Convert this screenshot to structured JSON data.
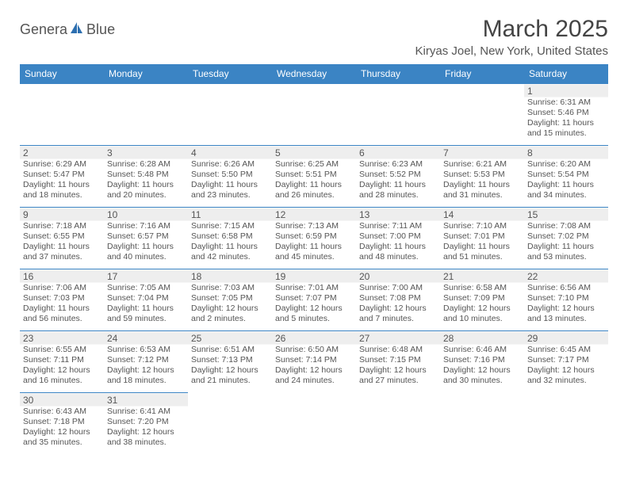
{
  "logo": {
    "text_left": "Genera",
    "text_right": "Blue",
    "icon_color": "#2d6fb0"
  },
  "title": "March 2025",
  "location": "Kiryas Joel, New York, United States",
  "header_bg": "#3b84c4",
  "day_headers": [
    "Sunday",
    "Monday",
    "Tuesday",
    "Wednesday",
    "Thursday",
    "Friday",
    "Saturday"
  ],
  "weeks": [
    [
      null,
      null,
      null,
      null,
      null,
      null,
      {
        "n": "1",
        "sr": "Sunrise: 6:31 AM",
        "ss": "Sunset: 5:46 PM",
        "dl": "Daylight: 11 hours and 15 minutes."
      }
    ],
    [
      {
        "n": "2",
        "sr": "Sunrise: 6:29 AM",
        "ss": "Sunset: 5:47 PM",
        "dl": "Daylight: 11 hours and 18 minutes."
      },
      {
        "n": "3",
        "sr": "Sunrise: 6:28 AM",
        "ss": "Sunset: 5:48 PM",
        "dl": "Daylight: 11 hours and 20 minutes."
      },
      {
        "n": "4",
        "sr": "Sunrise: 6:26 AM",
        "ss": "Sunset: 5:50 PM",
        "dl": "Daylight: 11 hours and 23 minutes."
      },
      {
        "n": "5",
        "sr": "Sunrise: 6:25 AM",
        "ss": "Sunset: 5:51 PM",
        "dl": "Daylight: 11 hours and 26 minutes."
      },
      {
        "n": "6",
        "sr": "Sunrise: 6:23 AM",
        "ss": "Sunset: 5:52 PM",
        "dl": "Daylight: 11 hours and 28 minutes."
      },
      {
        "n": "7",
        "sr": "Sunrise: 6:21 AM",
        "ss": "Sunset: 5:53 PM",
        "dl": "Daylight: 11 hours and 31 minutes."
      },
      {
        "n": "8",
        "sr": "Sunrise: 6:20 AM",
        "ss": "Sunset: 5:54 PM",
        "dl": "Daylight: 11 hours and 34 minutes."
      }
    ],
    [
      {
        "n": "9",
        "sr": "Sunrise: 7:18 AM",
        "ss": "Sunset: 6:55 PM",
        "dl": "Daylight: 11 hours and 37 minutes."
      },
      {
        "n": "10",
        "sr": "Sunrise: 7:16 AM",
        "ss": "Sunset: 6:57 PM",
        "dl": "Daylight: 11 hours and 40 minutes."
      },
      {
        "n": "11",
        "sr": "Sunrise: 7:15 AM",
        "ss": "Sunset: 6:58 PM",
        "dl": "Daylight: 11 hours and 42 minutes."
      },
      {
        "n": "12",
        "sr": "Sunrise: 7:13 AM",
        "ss": "Sunset: 6:59 PM",
        "dl": "Daylight: 11 hours and 45 minutes."
      },
      {
        "n": "13",
        "sr": "Sunrise: 7:11 AM",
        "ss": "Sunset: 7:00 PM",
        "dl": "Daylight: 11 hours and 48 minutes."
      },
      {
        "n": "14",
        "sr": "Sunrise: 7:10 AM",
        "ss": "Sunset: 7:01 PM",
        "dl": "Daylight: 11 hours and 51 minutes."
      },
      {
        "n": "15",
        "sr": "Sunrise: 7:08 AM",
        "ss": "Sunset: 7:02 PM",
        "dl": "Daylight: 11 hours and 53 minutes."
      }
    ],
    [
      {
        "n": "16",
        "sr": "Sunrise: 7:06 AM",
        "ss": "Sunset: 7:03 PM",
        "dl": "Daylight: 11 hours and 56 minutes."
      },
      {
        "n": "17",
        "sr": "Sunrise: 7:05 AM",
        "ss": "Sunset: 7:04 PM",
        "dl": "Daylight: 11 hours and 59 minutes."
      },
      {
        "n": "18",
        "sr": "Sunrise: 7:03 AM",
        "ss": "Sunset: 7:05 PM",
        "dl": "Daylight: 12 hours and 2 minutes."
      },
      {
        "n": "19",
        "sr": "Sunrise: 7:01 AM",
        "ss": "Sunset: 7:07 PM",
        "dl": "Daylight: 12 hours and 5 minutes."
      },
      {
        "n": "20",
        "sr": "Sunrise: 7:00 AM",
        "ss": "Sunset: 7:08 PM",
        "dl": "Daylight: 12 hours and 7 minutes."
      },
      {
        "n": "21",
        "sr": "Sunrise: 6:58 AM",
        "ss": "Sunset: 7:09 PM",
        "dl": "Daylight: 12 hours and 10 minutes."
      },
      {
        "n": "22",
        "sr": "Sunrise: 6:56 AM",
        "ss": "Sunset: 7:10 PM",
        "dl": "Daylight: 12 hours and 13 minutes."
      }
    ],
    [
      {
        "n": "23",
        "sr": "Sunrise: 6:55 AM",
        "ss": "Sunset: 7:11 PM",
        "dl": "Daylight: 12 hours and 16 minutes."
      },
      {
        "n": "24",
        "sr": "Sunrise: 6:53 AM",
        "ss": "Sunset: 7:12 PM",
        "dl": "Daylight: 12 hours and 18 minutes."
      },
      {
        "n": "25",
        "sr": "Sunrise: 6:51 AM",
        "ss": "Sunset: 7:13 PM",
        "dl": "Daylight: 12 hours and 21 minutes."
      },
      {
        "n": "26",
        "sr": "Sunrise: 6:50 AM",
        "ss": "Sunset: 7:14 PM",
        "dl": "Daylight: 12 hours and 24 minutes."
      },
      {
        "n": "27",
        "sr": "Sunrise: 6:48 AM",
        "ss": "Sunset: 7:15 PM",
        "dl": "Daylight: 12 hours and 27 minutes."
      },
      {
        "n": "28",
        "sr": "Sunrise: 6:46 AM",
        "ss": "Sunset: 7:16 PM",
        "dl": "Daylight: 12 hours and 30 minutes."
      },
      {
        "n": "29",
        "sr": "Sunrise: 6:45 AM",
        "ss": "Sunset: 7:17 PM",
        "dl": "Daylight: 12 hours and 32 minutes."
      }
    ],
    [
      {
        "n": "30",
        "sr": "Sunrise: 6:43 AM",
        "ss": "Sunset: 7:18 PM",
        "dl": "Daylight: 12 hours and 35 minutes."
      },
      {
        "n": "31",
        "sr": "Sunrise: 6:41 AM",
        "ss": "Sunset: 7:20 PM",
        "dl": "Daylight: 12 hours and 38 minutes."
      },
      null,
      null,
      null,
      null,
      null
    ]
  ]
}
